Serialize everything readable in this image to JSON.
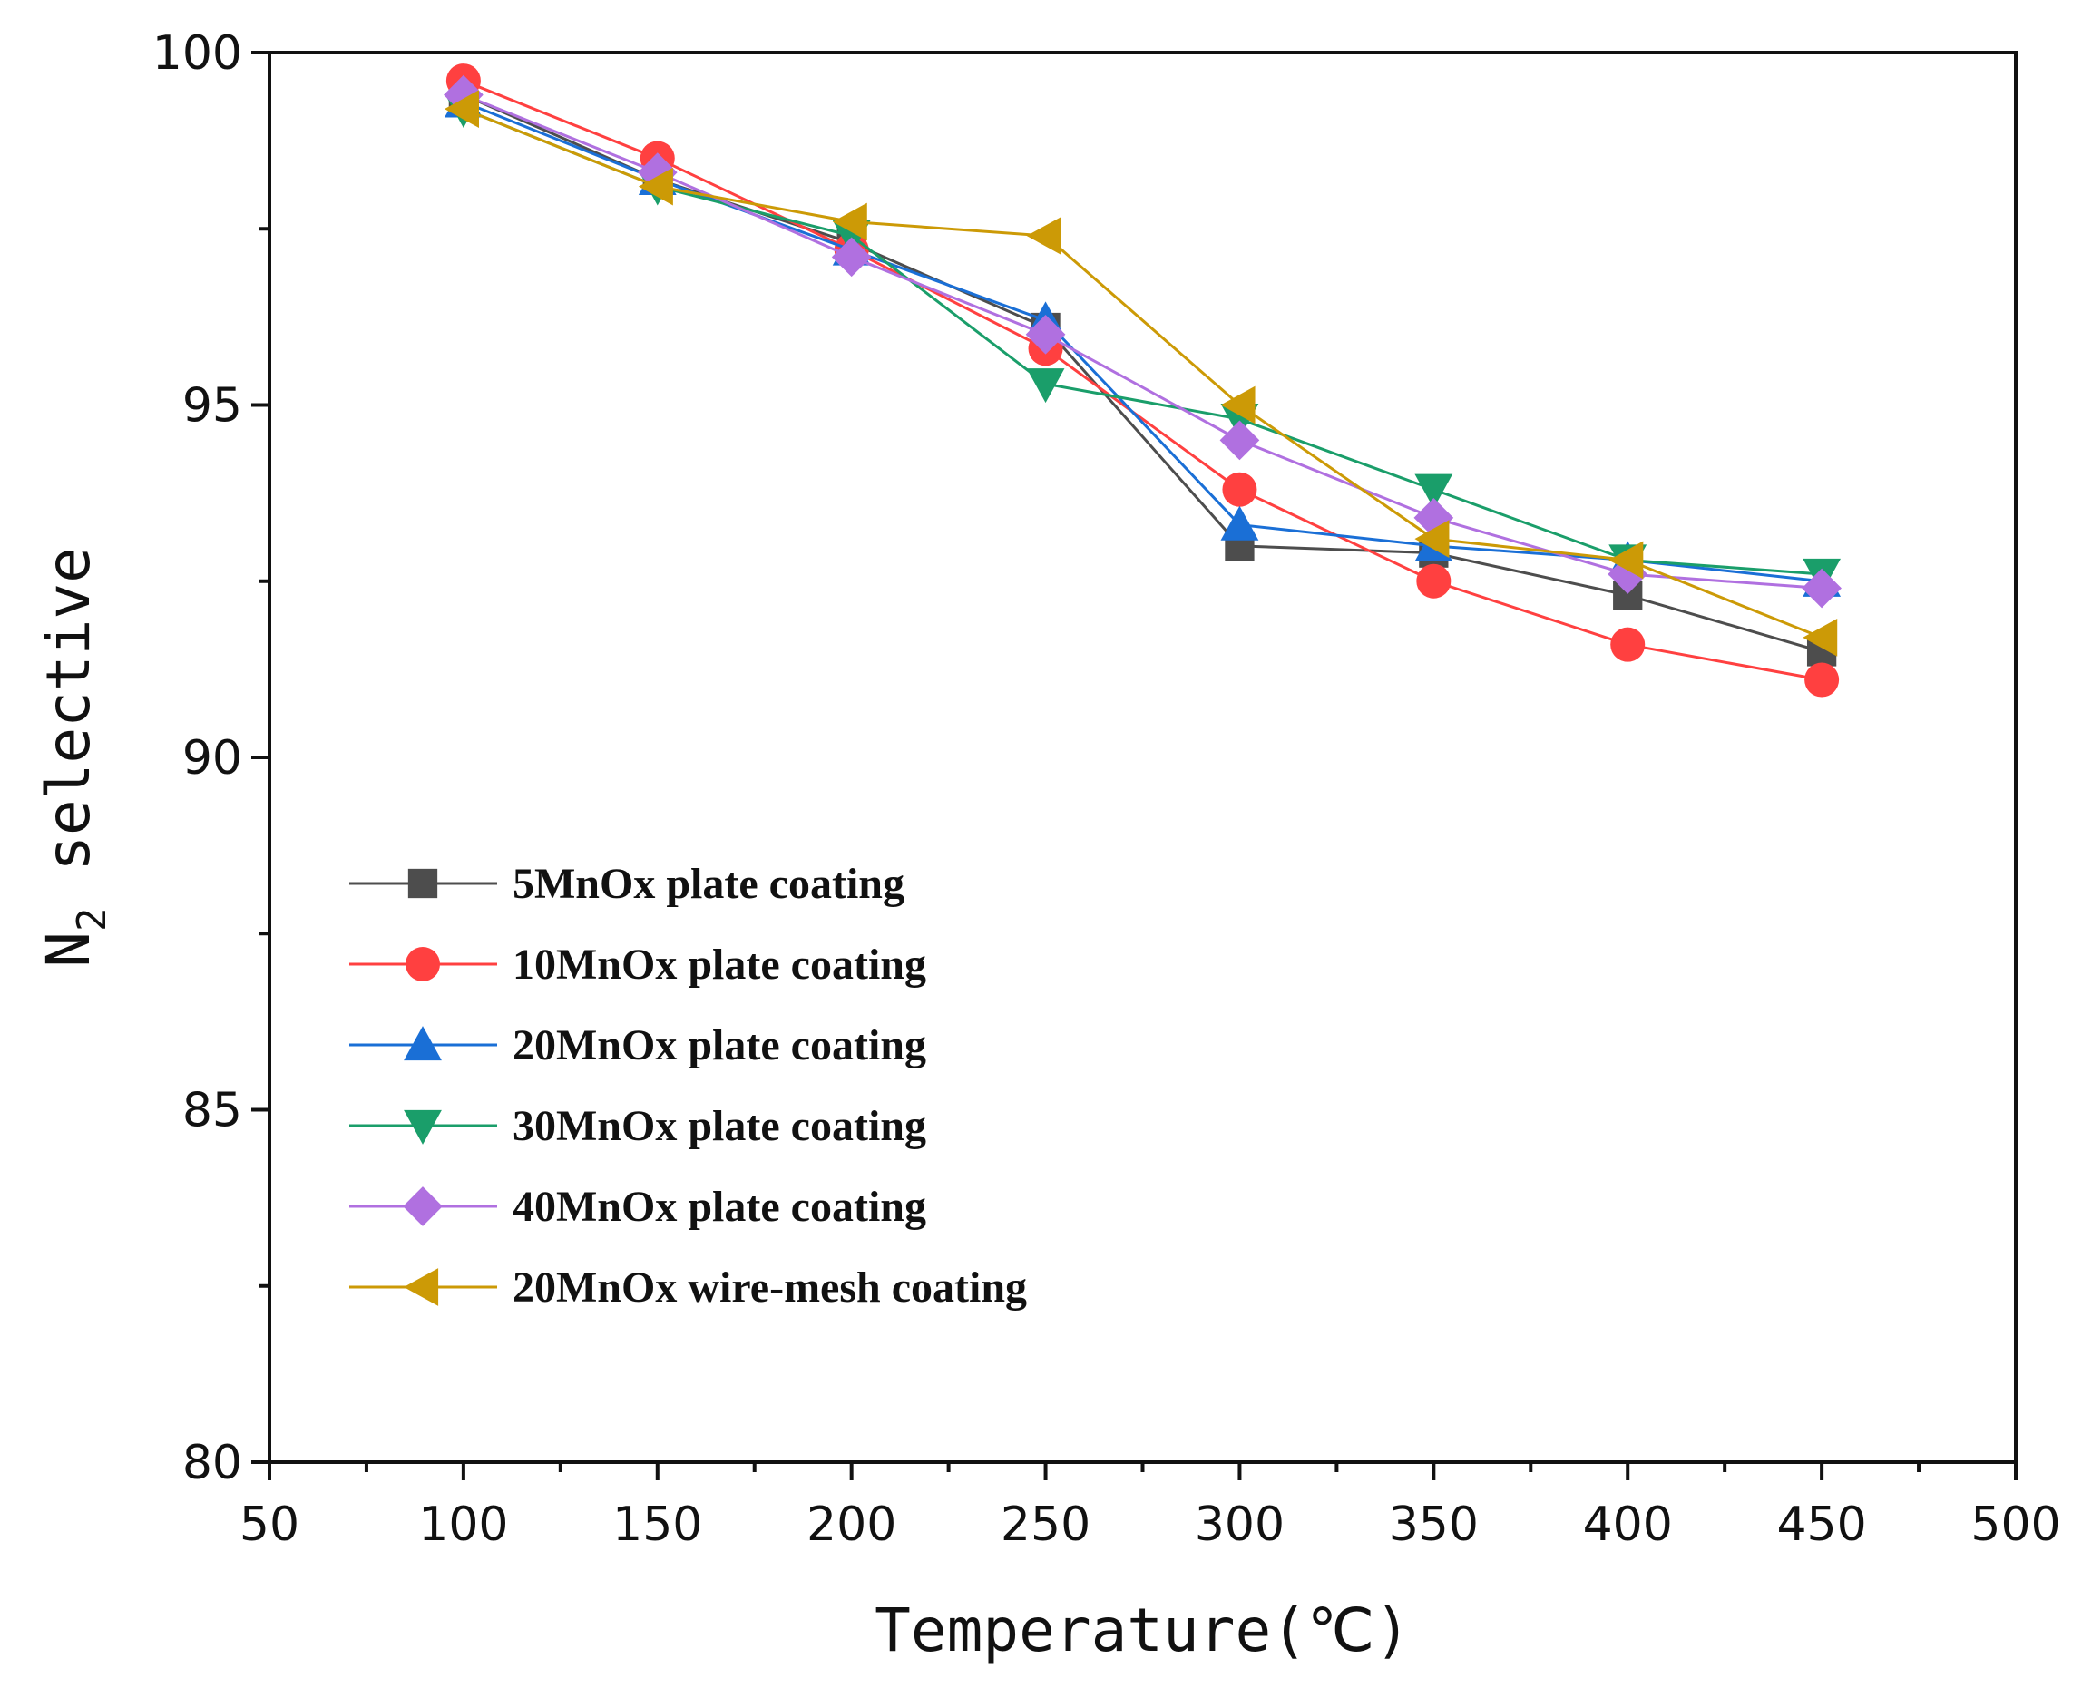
{
  "chart_data": {
    "type": "line",
    "title": "",
    "xlabel": "Temperature(℃)",
    "ylabel_main": "N",
    "ylabel_sub": "2",
    "ylabel_rest": " selective",
    "xlim": [
      50,
      500
    ],
    "ylim": [
      80,
      100
    ],
    "x_ticks": [
      50,
      100,
      150,
      200,
      250,
      300,
      350,
      400,
      450,
      500
    ],
    "y_ticks": [
      80,
      85,
      90,
      95,
      100
    ],
    "grid": false,
    "legend_position": "lower-left",
    "x": [
      100,
      150,
      200,
      250,
      300,
      350,
      400,
      450
    ],
    "series": [
      {
        "name": "5MnOx plate coating",
        "color": "#4d4d4d",
        "marker": "square",
        "values": [
          99.4,
          98.2,
          97.3,
          96.1,
          93.0,
          92.9,
          92.3,
          91.5
        ]
      },
      {
        "name": "10MnOx plate coating",
        "color": "#ff4040",
        "marker": "circle",
        "values": [
          99.6,
          98.5,
          97.2,
          95.8,
          93.8,
          92.5,
          91.6,
          91.1
        ]
      },
      {
        "name": "20MnOx plate coating",
        "color": "#1a6fd6",
        "marker": "triangle-up",
        "values": [
          99.3,
          98.2,
          97.2,
          96.2,
          93.3,
          93.0,
          92.8,
          92.5
        ]
      },
      {
        "name": "30MnOx plate coating",
        "color": "#1a9e6a",
        "marker": "triangle-down",
        "values": [
          99.2,
          98.1,
          97.4,
          95.3,
          94.8,
          93.8,
          92.8,
          92.6
        ]
      },
      {
        "name": "40MnOx plate coating",
        "color": "#b070e0",
        "marker": "diamond",
        "values": [
          99.4,
          98.3,
          97.1,
          96.0,
          94.5,
          93.4,
          92.6,
          92.4
        ]
      },
      {
        "name": "20MnOx wire-mesh coating",
        "color": "#cc9a06",
        "marker": "triangle-left",
        "values": [
          99.2,
          98.1,
          97.6,
          97.4,
          95.0,
          93.1,
          92.8,
          91.7
        ]
      }
    ]
  }
}
